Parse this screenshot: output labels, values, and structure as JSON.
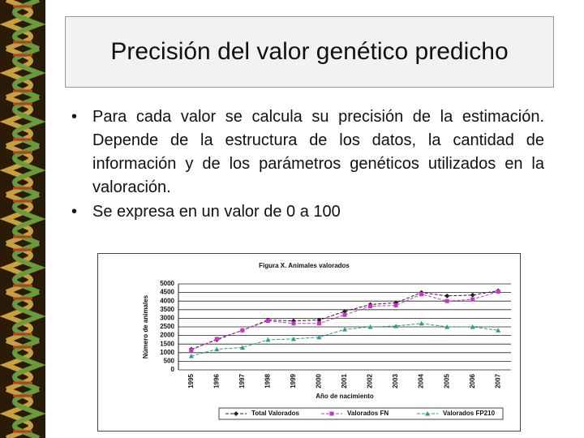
{
  "slide": {
    "title": "Precisión del valor genético predicho",
    "bullets": [
      "Para cada valor se calcula su precisión de la estimación. Depende de la estructura de los datos, la cantidad de información y de los parámetros genéticos utilizados en la valoración.",
      "Se expresa en un valor de 0 a 100"
    ]
  },
  "chart_data": {
    "type": "line",
    "title": "Figura X. Animales valorados",
    "y_label": "Número de animales",
    "x_label": "Año de nacimiento",
    "categories": [
      "1995",
      "1996",
      "1997",
      "1998",
      "1999",
      "2000",
      "2001",
      "2002",
      "2003",
      "2004",
      "2005",
      "2006",
      "2007"
    ],
    "series": [
      {
        "name": "Total Valorados",
        "color": "#222222",
        "marker": "diamond",
        "values": [
          1200,
          1750,
          2300,
          2900,
          2850,
          2900,
          3400,
          3800,
          3900,
          4500,
          4300,
          4350,
          4600
        ]
      },
      {
        "name": "Valorados FN",
        "color": "#cc33cc",
        "marker": "square",
        "values": [
          1150,
          1800,
          2300,
          2850,
          2700,
          2700,
          3200,
          3700,
          3750,
          4400,
          4000,
          4100,
          4550
        ]
      },
      {
        "name": "Valorados FP210",
        "color": "#339988",
        "marker": "triangle",
        "values": [
          800,
          1200,
          1300,
          1750,
          1800,
          1900,
          2350,
          2500,
          2550,
          2700,
          2500,
          2500,
          2300
        ]
      }
    ],
    "ylim": [
      0,
      5000
    ],
    "yticks": [
      0,
      500,
      1000,
      1500,
      2000,
      2500,
      3000,
      3500,
      4000,
      4500,
      5000
    ],
    "grid": true,
    "legend": "bottom"
  }
}
